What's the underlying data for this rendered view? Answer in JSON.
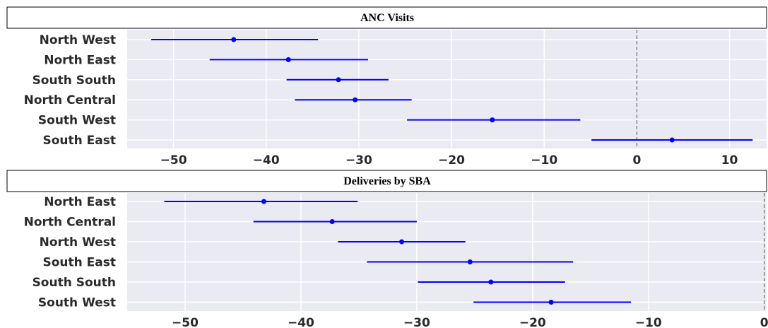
{
  "chart_data": [
    {
      "type": "scatter",
      "title": "ANC Visits",
      "xlabel": "",
      "ylabel": "",
      "xlim": [
        -55,
        14
      ],
      "xticks": [
        -50,
        -40,
        -30,
        -20,
        -10,
        0,
        10
      ],
      "reference_line_x": 0,
      "grid": true,
      "categories": [
        "North West",
        "North East",
        "South South",
        "North Central",
        "South West",
        "South East"
      ],
      "estimates": [
        -43.5,
        -37.6,
        -32.2,
        -30.4,
        -15.6,
        3.8
      ],
      "ci_low": [
        -52.4,
        -46.1,
        -37.8,
        -36.9,
        -24.8,
        -4.9
      ],
      "ci_high": [
        -34.4,
        -29.0,
        -26.8,
        -24.3,
        -6.1,
        12.5
      ],
      "color": "#0000ff"
    },
    {
      "type": "scatter",
      "title": "Deliveries by SBA",
      "xlabel": "",
      "ylabel": "",
      "xlim": [
        -55,
        0.2
      ],
      "xticks": [
        -50,
        -40,
        -30,
        -20,
        -10,
        0
      ],
      "reference_line_x": 0,
      "grid": true,
      "categories": [
        "North East",
        "North Central",
        "North West",
        "South East",
        "South South",
        "South West"
      ],
      "estimates": [
        -43.2,
        -37.3,
        -31.3,
        -25.4,
        -23.6,
        -18.4
      ],
      "ci_low": [
        -51.8,
        -44.1,
        -36.8,
        -34.3,
        -29.9,
        -25.1
      ],
      "ci_high": [
        -35.1,
        -30.0,
        -25.8,
        -16.5,
        -17.2,
        -11.5
      ],
      "color": "#0000ff"
    }
  ]
}
